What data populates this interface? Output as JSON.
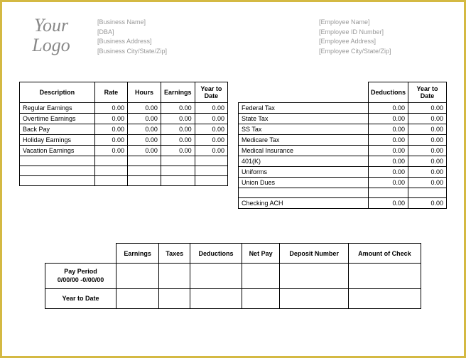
{
  "colors": {
    "border_outer": "#d4b943",
    "text_muted": "#999999",
    "grid": "#000000"
  },
  "logo": {
    "line1": "Your",
    "line2": "Logo"
  },
  "business": {
    "name": "[Business Name]",
    "dba": "[DBA]",
    "address": "[Business Address]",
    "csz": "[Business City/State/Zip]"
  },
  "employee": {
    "name": "[Employee Name]",
    "id": "[Employee ID Number]",
    "address": "[Employee Address]",
    "csz": "[Employee City/State/Zip]"
  },
  "earnings": {
    "headers": {
      "desc": "Description",
      "rate": "Rate",
      "hours": "Hours",
      "earn": "Earnings",
      "ytd": "Year to Date"
    },
    "rows": [
      {
        "label": "Regular Earnings",
        "rate": "0.00",
        "hours": "0.00",
        "earn": "0.00",
        "ytd": "0.00"
      },
      {
        "label": "Overtime Earnings",
        "rate": "0.00",
        "hours": "0.00",
        "earn": "0.00",
        "ytd": "0.00"
      },
      {
        "label": "Back Pay",
        "rate": "0.00",
        "hours": "0.00",
        "earn": "0.00",
        "ytd": "0.00"
      },
      {
        "label": "Holiday Earnings",
        "rate": "0.00",
        "hours": "0.00",
        "earn": "0.00",
        "ytd": "0.00"
      },
      {
        "label": "Vacation Earnings",
        "rate": "0.00",
        "hours": "0.00",
        "earn": "0.00",
        "ytd": "0.00"
      }
    ],
    "blank_rows": 3
  },
  "deductions": {
    "headers": {
      "ded": "Deductions",
      "ytd": "Year to Date"
    },
    "rows": [
      {
        "label": "Federal Tax",
        "amt": "0.00",
        "ytd": "0.00"
      },
      {
        "label": "State Tax",
        "amt": "0.00",
        "ytd": "0.00"
      },
      {
        "label": "SS Tax",
        "amt": "0.00",
        "ytd": "0.00"
      },
      {
        "label": "Medicare Tax",
        "amt": "0.00",
        "ytd": "0.00"
      },
      {
        "label": "Medical Insurance",
        "amt": "0.00",
        "ytd": "0.00"
      },
      {
        "label": "401(K)",
        "amt": "0.00",
        "ytd": "0.00"
      },
      {
        "label": "Uniforms",
        "amt": "0.00",
        "ytd": "0.00"
      },
      {
        "label": "Union Dues",
        "amt": "0.00",
        "ytd": "0.00"
      }
    ],
    "blank_rows": 1,
    "footer": {
      "label": "Checking ACH",
      "amt": "0.00",
      "ytd": "0.00"
    }
  },
  "summary": {
    "headers": {
      "earn": "Earnings",
      "taxes": "Taxes",
      "ded": "Deductions",
      "net": "Net Pay",
      "dep": "Deposit Number",
      "amt": "Amount of Check"
    },
    "rows": [
      {
        "head": "Pay Period\n0/00/00 -0/00/00"
      },
      {
        "head": "Year to Date"
      }
    ]
  }
}
